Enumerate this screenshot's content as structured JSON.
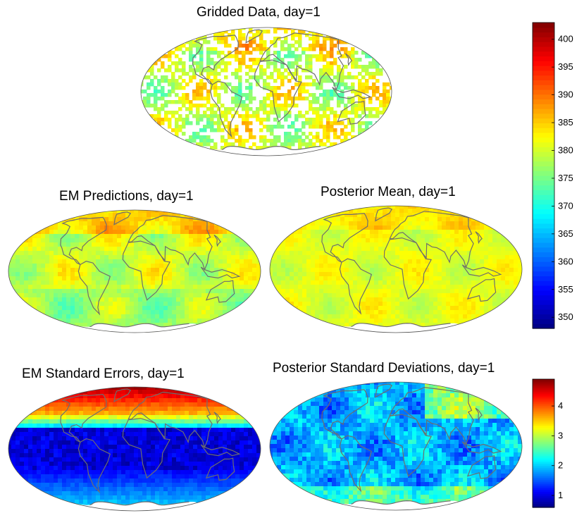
{
  "panels": [
    {
      "key": "gridded",
      "title": "Gridded Data, day=1",
      "field": "sparse"
    },
    {
      "key": "em_pred",
      "title": "EM Predictions, day=1",
      "field": "smooth"
    },
    {
      "key": "post_mean",
      "title": "Posterior Mean, day=1",
      "field": "smooth2"
    },
    {
      "key": "em_se",
      "title": "EM Standard Errors, day=1",
      "field": "stderr"
    },
    {
      "key": "post_sd",
      "title": "Posterior Standard Deviations, day=1",
      "field": "postsd"
    }
  ],
  "colorbar_top": {
    "min": 348,
    "max": 403,
    "tick_labels": [
      "350",
      "355",
      "360",
      "365",
      "370",
      "375",
      "380",
      "385",
      "390",
      "395",
      "400"
    ]
  },
  "colorbar_bottom": {
    "min": 0.6,
    "max": 4.9,
    "tick_labels": [
      "1",
      "2",
      "3",
      "4"
    ]
  },
  "colormap": "jet",
  "colors": {
    "coastline": "#6e6e6e",
    "outline": "#555555",
    "antarctica": "#ffffff"
  }
}
